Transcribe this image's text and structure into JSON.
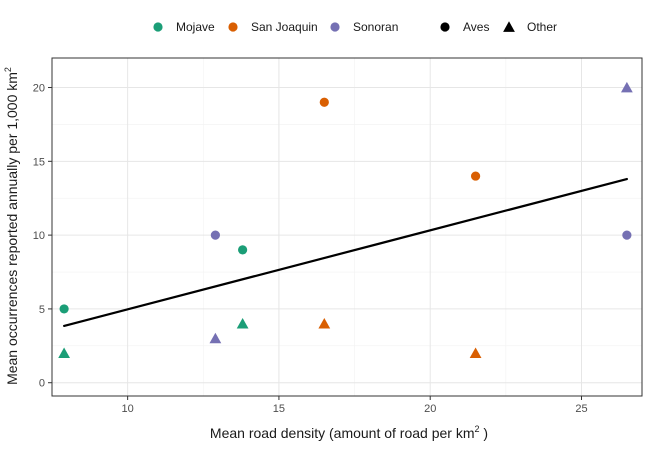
{
  "chart_data": {
    "type": "scatter",
    "xlabel": "Mean road density (amount of road per  km",
    "xlabel_sup": "2",
    "xlabel_end": " )",
    "ylabel": "Mean occurrences reported annually per 1,000 km",
    "ylabel_sup": "2",
    "xlim": [
      7.5,
      27.0
    ],
    "ylim": [
      -0.9,
      22.0
    ],
    "x_ticks": [
      10,
      15,
      20,
      25
    ],
    "y_ticks": [
      0,
      5,
      10,
      15,
      20
    ],
    "grid": true,
    "legend_position": "top",
    "legend": {
      "colors": [
        {
          "name": "Mojave",
          "color": "#1b9e77"
        },
        {
          "name": "San Joaquin",
          "color": "#d95f02"
        },
        {
          "name": "Sonoran",
          "color": "#7570b3"
        }
      ],
      "shapes": [
        {
          "name": "Aves",
          "shape": "circle"
        },
        {
          "name": "Other",
          "shape": "triangle"
        }
      ]
    },
    "points": [
      {
        "region": "Mojave",
        "group": "Aves",
        "x": 7.9,
        "y": 5
      },
      {
        "region": "Mojave",
        "group": "Other",
        "x": 7.9,
        "y": 2
      },
      {
        "region": "Mojave",
        "group": "Aves",
        "x": 13.8,
        "y": 9
      },
      {
        "region": "Mojave",
        "group": "Other",
        "x": 13.8,
        "y": 4
      },
      {
        "region": "San Joaquin",
        "group": "Aves",
        "x": 16.5,
        "y": 19
      },
      {
        "region": "San Joaquin",
        "group": "Other",
        "x": 16.5,
        "y": 4
      },
      {
        "region": "San Joaquin",
        "group": "Aves",
        "x": 21.5,
        "y": 14
      },
      {
        "region": "San Joaquin",
        "group": "Other",
        "x": 21.5,
        "y": 2
      },
      {
        "region": "Sonoran",
        "group": "Aves",
        "x": 12.9,
        "y": 10
      },
      {
        "region": "Sonoran",
        "group": "Other",
        "x": 12.9,
        "y": 3
      },
      {
        "region": "Sonoran",
        "group": "Aves",
        "x": 26.5,
        "y": 10
      },
      {
        "region": "Sonoran",
        "group": "Other",
        "x": 26.5,
        "y": 20
      }
    ],
    "trend_line": {
      "x": [
        7.9,
        26.5
      ],
      "y": [
        3.85,
        13.8
      ],
      "color": "#000000"
    }
  }
}
